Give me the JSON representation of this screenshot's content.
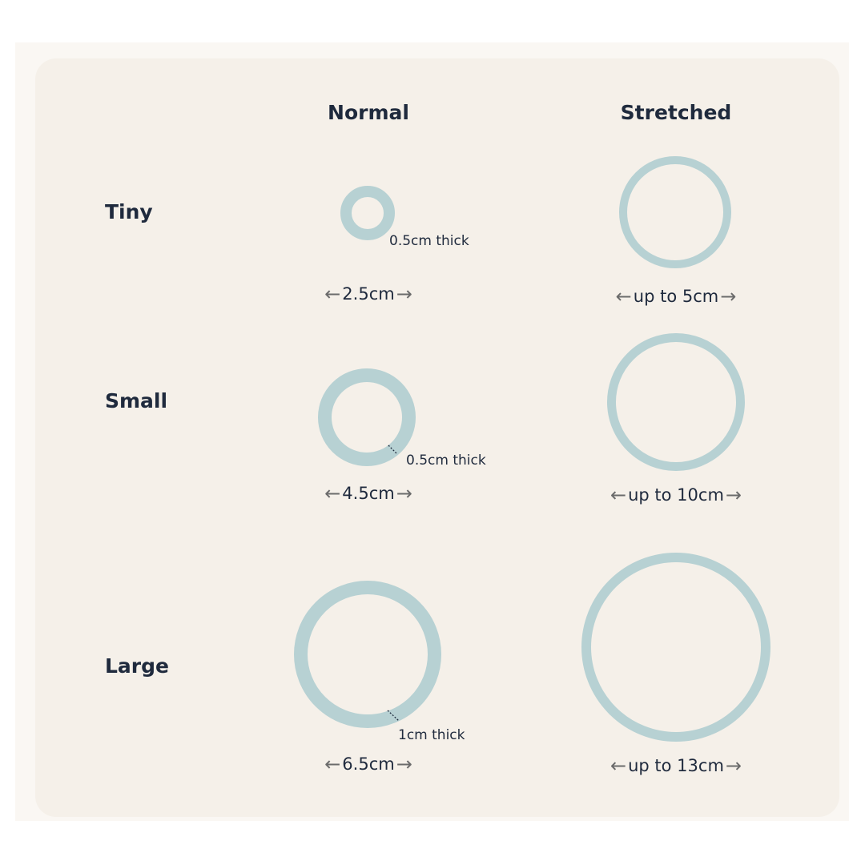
{
  "colors": {
    "ring": "#b7d1d3",
    "text": "#1f2a3d",
    "card": "#f5f0e9",
    "background": "#faf7f3"
  },
  "columns": [
    "Normal",
    "Stretched"
  ],
  "rows": [
    {
      "label": "Tiny",
      "normal_diameter": "2.5cm",
      "stretched_diameter": "up to 5cm",
      "thickness": "0.5cm thick"
    },
    {
      "label": "Small",
      "normal_diameter": "4.5cm",
      "stretched_diameter": "up to 10cm",
      "thickness": "0.5cm thick"
    },
    {
      "label": "Large",
      "normal_diameter": "6.5cm",
      "stretched_diameter": "up to 13cm",
      "thickness": "1cm thick"
    }
  ],
  "icons": {
    "left": "arrow-left-icon",
    "right": "arrow-right-icon"
  }
}
